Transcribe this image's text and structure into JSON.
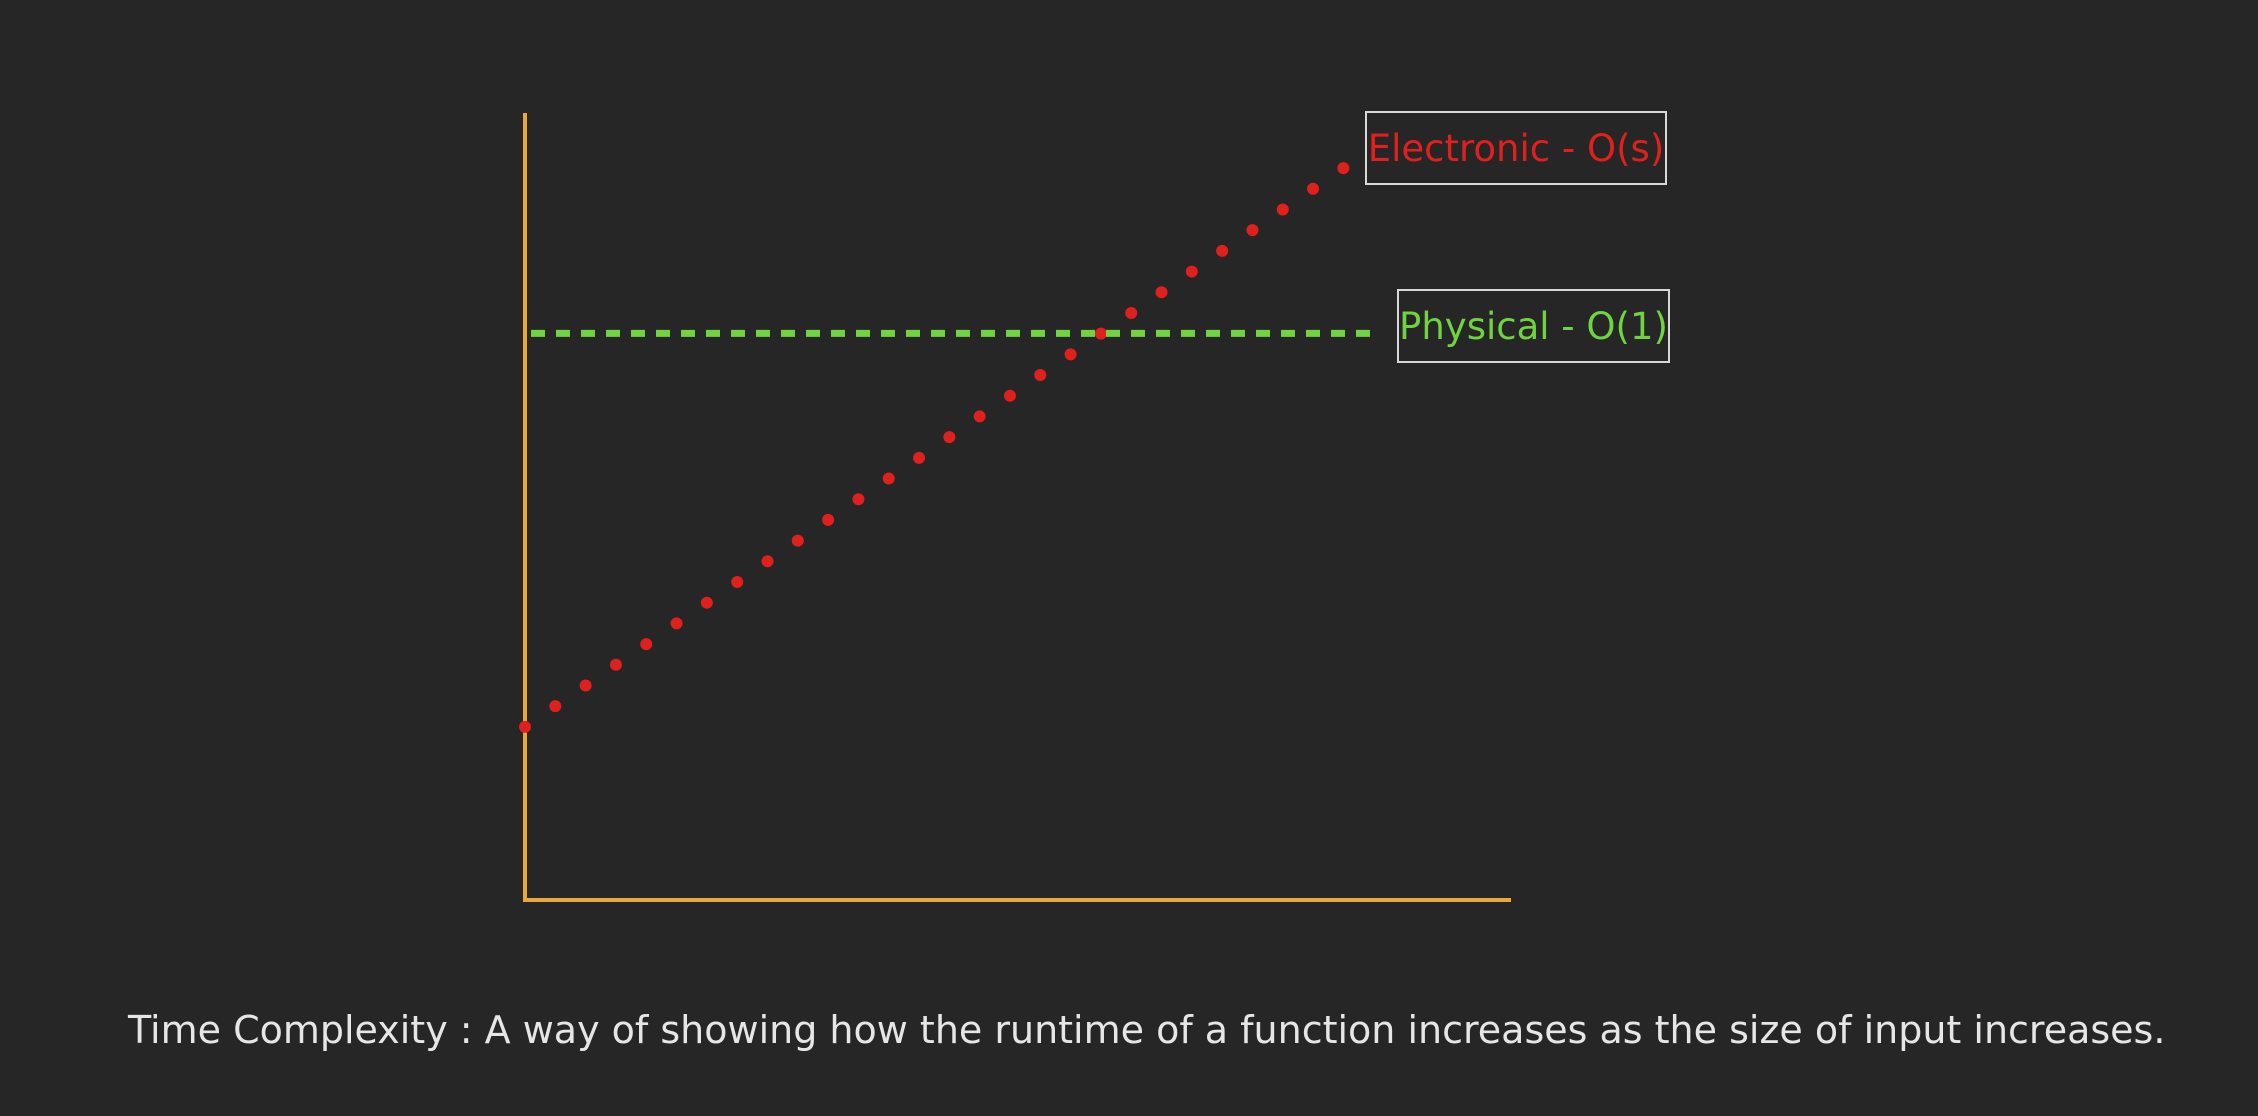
{
  "chart_data": {
    "type": "line",
    "title": "",
    "xlabel": "",
    "ylabel": "",
    "axis_color": "#e8a93a",
    "grid": false,
    "legend_placement": "right",
    "xlim": [
      0,
      10
    ],
    "ylim": [
      0,
      10
    ],
    "series": [
      {
        "name": "Electronic - O(s)",
        "color": "#e0201c",
        "style": "dotted",
        "x": [
          0,
          8.3
        ],
        "y": [
          2.2,
          9.3
        ]
      },
      {
        "name": "Physical - O(1)",
        "color": "#6fd43f",
        "style": "dashed",
        "x": [
          0,
          8.6
        ],
        "y": [
          7.2,
          7.2
        ]
      }
    ]
  },
  "caption": "Time Complexity : A way of showing how the runtime of a function increases as the size of input increases."
}
